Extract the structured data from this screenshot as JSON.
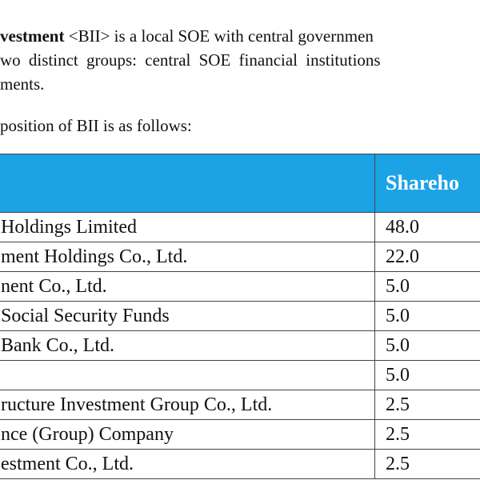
{
  "intro": {
    "line1_bold": "vestment",
    "line1_rest": "<BII> is a local SOE with central governmen",
    "line2": "wo distinct groups: central SOE financial institutions",
    "line3": "ments."
  },
  "lead": "position of BII is as follows:",
  "table": {
    "header": {
      "share": "Shareho"
    },
    "rows": [
      {
        "name": "Holdings Limited",
        "share": "48.0"
      },
      {
        "name": "ment Holdings Co., Ltd.",
        "share": "22.0"
      },
      {
        "name": "nent Co., Ltd.",
        "share": "5.0"
      },
      {
        "name": "Social Security Funds",
        "share": "5.0"
      },
      {
        "name": "Bank Co., Ltd.",
        "share": "5.0"
      },
      {
        "share": "5.0"
      },
      {
        "name": "ructure Investment Group Co., Ltd.",
        "share": "2.5"
      },
      {
        "name": "nce (Group) Company",
        "share": "2.5"
      },
      {
        "name": "estment Co., Ltd.",
        "share": "2.5"
      }
    ]
  }
}
